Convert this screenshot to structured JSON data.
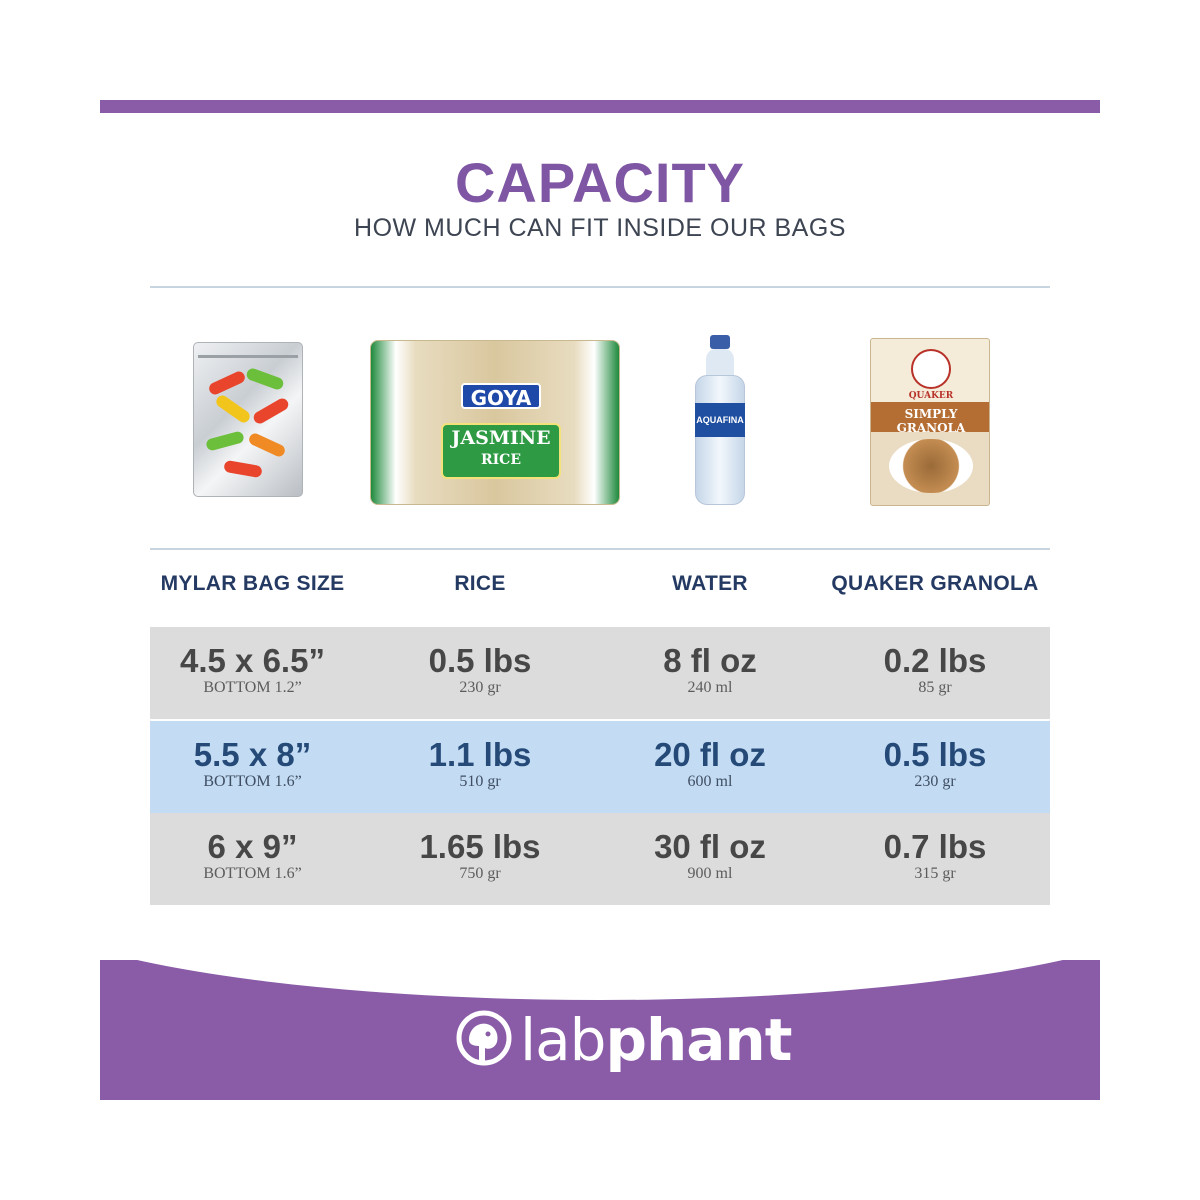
{
  "header": {
    "title": "CAPACITY",
    "subtitle": "HOW MUCH CAN FIT INSIDE OUR BAGS"
  },
  "products": {
    "rice_brand": "GOYA",
    "rice_label_line1": "JASMINE",
    "rice_label_line2": "RICE",
    "water_brand": "AQUAFINA",
    "granola_brand": "QUAKER",
    "granola_name": "SIMPLY GRANOLA"
  },
  "table": {
    "columns": [
      "MYLAR BAG SIZE",
      "RICE",
      "WATER",
      "QUAKER GRANOLA"
    ],
    "rows": [
      {
        "size": "4.5 x 6.5”",
        "bottom": "BOTTOM 1.2”",
        "rice": "0.5 lbs",
        "rice_sub": "230 gr",
        "water": "8 fl oz",
        "water_sub": "240 ml",
        "granola": "0.2 lbs",
        "granola_sub": "85 gr"
      },
      {
        "size": "5.5 x 8”",
        "bottom": "BOTTOM 1.6”",
        "rice": "1.1 lbs",
        "rice_sub": "510 gr",
        "water": "20 fl oz",
        "water_sub": "600 ml",
        "granola": "0.5 lbs",
        "granola_sub": "230 gr"
      },
      {
        "size": "6 x 9”",
        "bottom": "BOTTOM 1.6”",
        "rice": "1.65 lbs",
        "rice_sub": "750 gr",
        "water": "30 fl oz",
        "water_sub": "900 ml",
        "granola": "0.7 lbs",
        "granola_sub": "315 gr"
      }
    ]
  },
  "footer": {
    "logo_light": "lab",
    "logo_bold": "phant"
  },
  "colors": {
    "brand_purple": "#8a5ca8",
    "title_purple": "#7f56a3",
    "header_navy": "#253a63",
    "row_gray": "#dcdcdc",
    "row_blue": "#c3dcf3"
  }
}
